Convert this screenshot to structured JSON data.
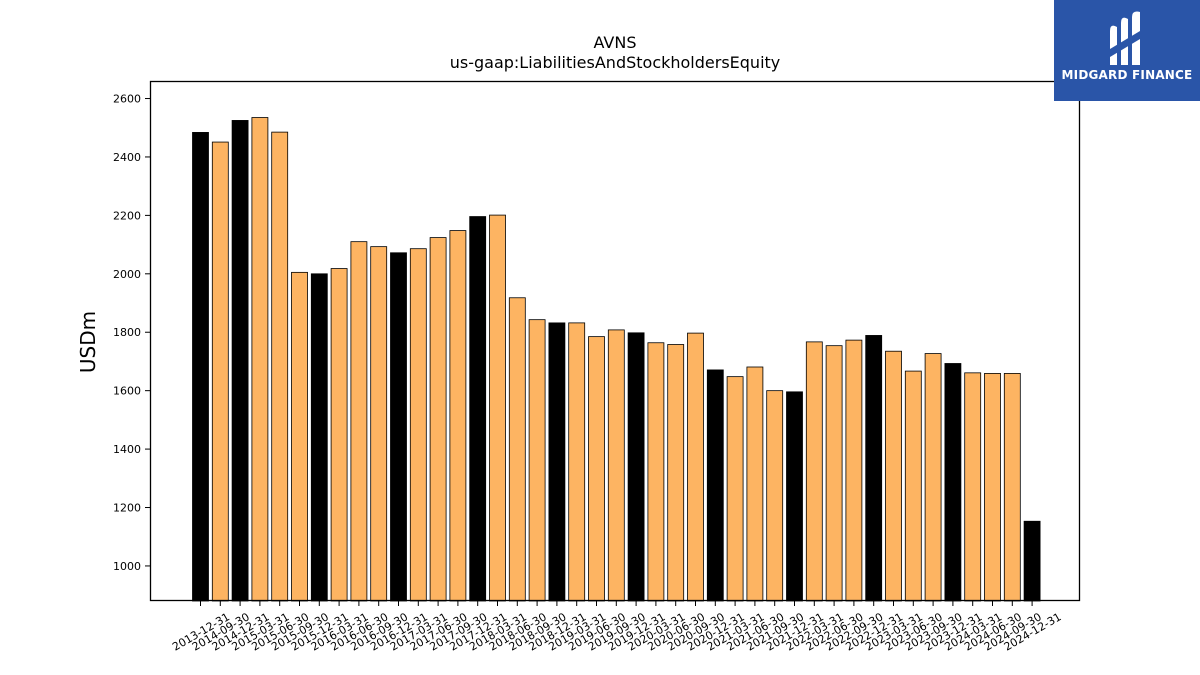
{
  "logo": {
    "text": "MIDGARD FINANCE",
    "icon": "midgard-m-logo-icon",
    "color": "#2a55a8"
  },
  "chart_data": {
    "type": "bar",
    "title": "AVNS",
    "subtitle": "us-gaap:LiabilitiesAndStockholdersEquity",
    "xlabel": "",
    "ylabel": "USDm",
    "ylim": [
      880,
      2660
    ],
    "yticks": [
      1000,
      1200,
      1400,
      1600,
      1800,
      2000,
      2200,
      2400,
      2600
    ],
    "grid": false,
    "legend": "none",
    "colors": {
      "year_end": "#000000",
      "quarter": "#fdb462",
      "edge": "#000000"
    },
    "categories": [
      "2013-12-31",
      "2014-09-30",
      "2014-12-31",
      "2015-03-31",
      "2015-06-30",
      "2015-09-30",
      "2015-12-31",
      "2016-03-31",
      "2016-06-30",
      "2016-09-30",
      "2016-12-31",
      "2017-03-31",
      "2017-06-30",
      "2017-09-30",
      "2017-12-31",
      "2018-03-31",
      "2018-06-30",
      "2018-09-30",
      "2018-12-31",
      "2019-03-31",
      "2019-06-30",
      "2019-09-30",
      "2019-12-31",
      "2020-03-31",
      "2020-06-30",
      "2020-09-30",
      "2020-12-31",
      "2021-03-31",
      "2021-06-30",
      "2021-09-30",
      "2021-12-31",
      "2022-03-31",
      "2022-06-30",
      "2022-09-30",
      "2022-12-31",
      "2023-03-31",
      "2023-06-30",
      "2023-09-30",
      "2023-12-31",
      "2024-03-31",
      "2024-06-30",
      "2024-09-30",
      "2024-12-31"
    ],
    "values": [
      2484,
      2451,
      2525,
      2535,
      2485,
      2005,
      2000,
      2018,
      2110,
      2093,
      2072,
      2086,
      2124,
      2148,
      2196,
      2201,
      1918,
      1843,
      1832,
      1832,
      1785,
      1808,
      1798,
      1764,
      1758,
      1797,
      1671,
      1648,
      1681,
      1600,
      1596,
      1767,
      1754,
      1773,
      1789,
      1735,
      1667,
      1727,
      1693,
      1661,
      1659,
      1659,
      1153
    ]
  }
}
